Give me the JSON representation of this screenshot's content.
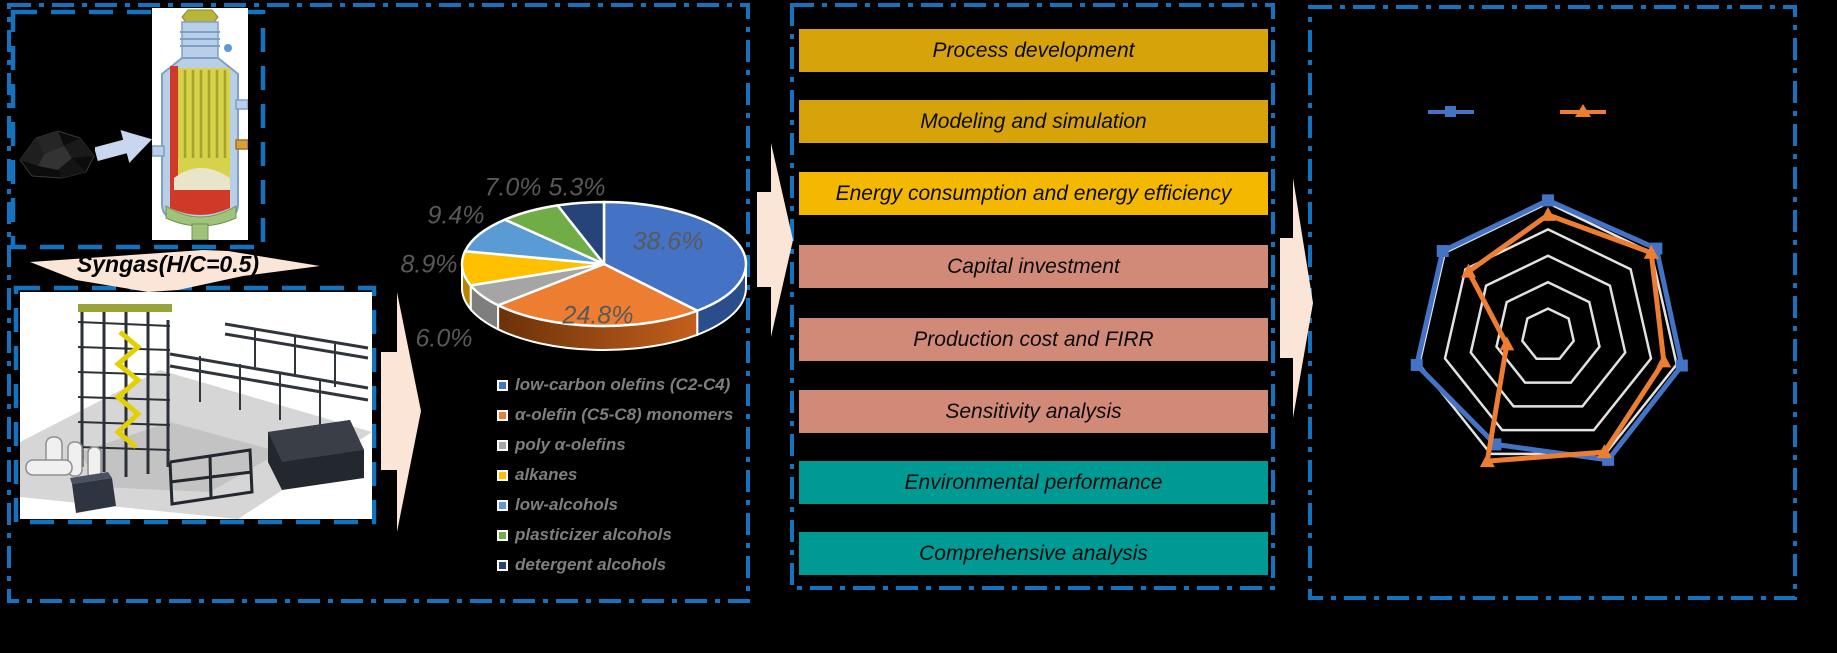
{
  "figure": {
    "description_visible_text_only": true,
    "left_panel": {
      "syngas_arrow_label": "Syngas(H/C=0.5)",
      "images": [
        "coal-pile",
        "gasifier-cross-section",
        "synthesis-plant-3d-render"
      ]
    },
    "middle_panel": {
      "banners": [
        {
          "label": "Process development",
          "color": "#D7A30B"
        },
        {
          "label": "Modeling and simulation",
          "color": "#D7A30B"
        },
        {
          "label": "Energy consumption and energy efficiency",
          "color": "#F5B800"
        },
        {
          "label": "Capital investment",
          "color": "#D28A78"
        },
        {
          "label": "Production cost and FIRR",
          "color": "#D28A78"
        },
        {
          "label": "Sensitivity analysis",
          "color": "#D28A78"
        },
        {
          "label": "Environmental performance",
          "color": "#009A94"
        },
        {
          "label": "Comprehensive analysis",
          "color": "#009A94"
        }
      ]
    },
    "right_panel": {
      "legend": [
        {
          "label": "",
          "marker": "square",
          "color": "#4472C4"
        },
        {
          "label": "",
          "marker": "triangle",
          "color": "#ED7D31"
        }
      ],
      "note": "legend and axis labels are black text invisible against the black background"
    },
    "accent_border_color": "#1373BE",
    "flow_arrow_color": "#FAE5D6"
  },
  "chart_data": [
    {
      "type": "pie",
      "style": "3d",
      "legend_position": "bottom",
      "start_angle_deg_from_top_clockwise": 0,
      "slices": [
        {
          "label": "low-carbon olefins (C2-C4)",
          "value": 38.6,
          "display": "38.6%",
          "color": "#4472C4",
          "wall": "#2B4D8C"
        },
        {
          "label": "α-olefin (C5-C8) monomers",
          "value": 24.8,
          "display": "24.8%",
          "color": "#ED7D31",
          "wall": "#8C4510"
        },
        {
          "label": "poly α-olefins",
          "value": 6.0,
          "display": "6.0%",
          "color": "#A5A5A5",
          "wall": "#7E7E7E"
        },
        {
          "label": "alkanes",
          "value": 8.9,
          "display": "8.9%",
          "color": "#FFC000",
          "wall": "#B38600"
        },
        {
          "label": "low-alcohols",
          "value": 9.4,
          "display": "9.4%",
          "color": "#5B9BD5",
          "wall": "#41719C"
        },
        {
          "label": "plasticizer alcohols",
          "value": 7.0,
          "display": "7.0%",
          "color": "#70AD47",
          "wall": "#507E32"
        },
        {
          "label": "detergent alcohols",
          "value": 5.3,
          "display": "5.3%",
          "color": "#264478",
          "wall": "#18294F"
        }
      ],
      "label_color": "#595959"
    },
    {
      "type": "radar",
      "axes_count": 7,
      "axis_labels_visible": false,
      "rings_relative": [
        0.2,
        0.4,
        0.6,
        0.8,
        1.0
      ],
      "grid_color": "#E2E2E2",
      "series": [
        {
          "label": "",
          "marker": "square",
          "color": "#4472C4",
          "values_relative": [
            1.02,
            1.05,
            1.04,
            1.05,
            0.92,
            1.02,
            1.02
          ]
        },
        {
          "label": "",
          "marker": "triangle",
          "color": "#ED7D31",
          "values_relative": [
            0.91,
            1.0,
            0.9,
            0.985,
            1.06,
            0.32,
            0.77
          ]
        }
      ]
    }
  ]
}
